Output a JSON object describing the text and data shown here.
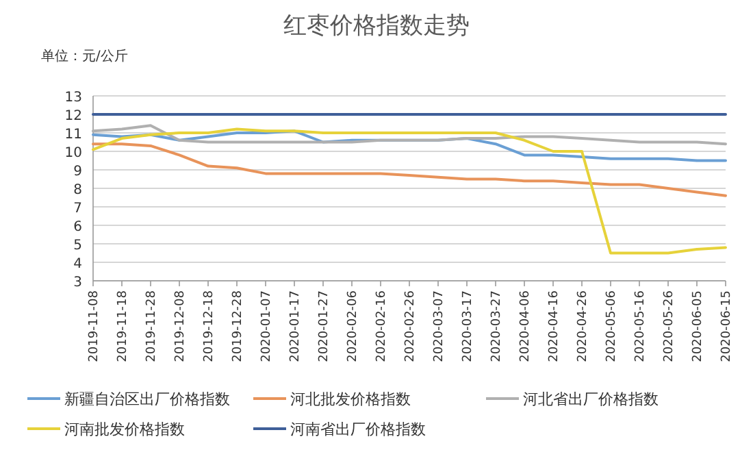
{
  "chart_data": {
    "type": "line",
    "title": "红枣价格指数走势",
    "annotations": [
      "单位：元/公斤"
    ],
    "categories": [
      "2019-11-08",
      "2019-11-18",
      "2019-11-28",
      "2019-12-08",
      "2019-12-18",
      "2019-12-28",
      "2020-01-07",
      "2020-01-17",
      "2020-01-27",
      "2020-02-06",
      "2020-02-16",
      "2020-02-26",
      "2020-03-07",
      "2020-03-17",
      "2020-03-27",
      "2020-04-06",
      "2020-04-16",
      "2020-04-26",
      "2020-05-06",
      "2020-05-16",
      "2020-05-26",
      "2020-06-05",
      "2020-06-15"
    ],
    "series": [
      {
        "name": "新疆自治区出厂价格指数",
        "color": "#6a9fd4",
        "values": [
          10.9,
          10.8,
          10.9,
          10.6,
          10.8,
          11.0,
          11.0,
          11.1,
          10.5,
          10.6,
          10.6,
          10.6,
          10.6,
          10.7,
          10.4,
          9.8,
          9.8,
          9.7,
          9.6,
          9.6,
          9.6,
          9.5,
          9.5
        ]
      },
      {
        "name": "河北批发价格指数",
        "color": "#e8935a",
        "values": [
          10.4,
          10.4,
          10.3,
          9.8,
          9.2,
          9.1,
          8.8,
          8.8,
          8.8,
          8.8,
          8.8,
          8.7,
          8.6,
          8.5,
          8.5,
          8.4,
          8.4,
          8.3,
          8.2,
          8.2,
          8.0,
          7.8,
          7.6
        ]
      },
      {
        "name": "河北省出厂价格指数",
        "color": "#b0b0b0",
        "values": [
          11.1,
          11.2,
          11.4,
          10.6,
          10.5,
          10.5,
          10.5,
          10.5,
          10.5,
          10.5,
          10.6,
          10.6,
          10.6,
          10.7,
          10.7,
          10.8,
          10.8,
          10.7,
          10.6,
          10.5,
          10.5,
          10.5,
          10.4
        ]
      },
      {
        "name": "河南批发价格指数",
        "color": "#e6d23a",
        "values": [
          10.1,
          10.7,
          10.9,
          11.0,
          11.0,
          11.2,
          11.1,
          11.1,
          11.0,
          11.0,
          11.0,
          11.0,
          11.0,
          11.0,
          11.0,
          10.6,
          10.0,
          10.0,
          4.5,
          4.5,
          4.5,
          4.7,
          4.8
        ]
      },
      {
        "name": "河南省出厂价格指数",
        "color": "#3f5f99",
        "values": [
          12,
          12,
          12,
          12,
          12,
          12,
          12,
          12,
          12,
          12,
          12,
          12,
          12,
          12,
          12,
          12,
          12,
          12,
          12,
          12,
          12,
          12,
          12
        ]
      }
    ],
    "ylim": [
      3,
      13
    ],
    "yticks": [
      3,
      4,
      5,
      6,
      7,
      8,
      9,
      10,
      11,
      12,
      13
    ],
    "grid": "y",
    "legend": "bottom",
    "marker": "none"
  }
}
